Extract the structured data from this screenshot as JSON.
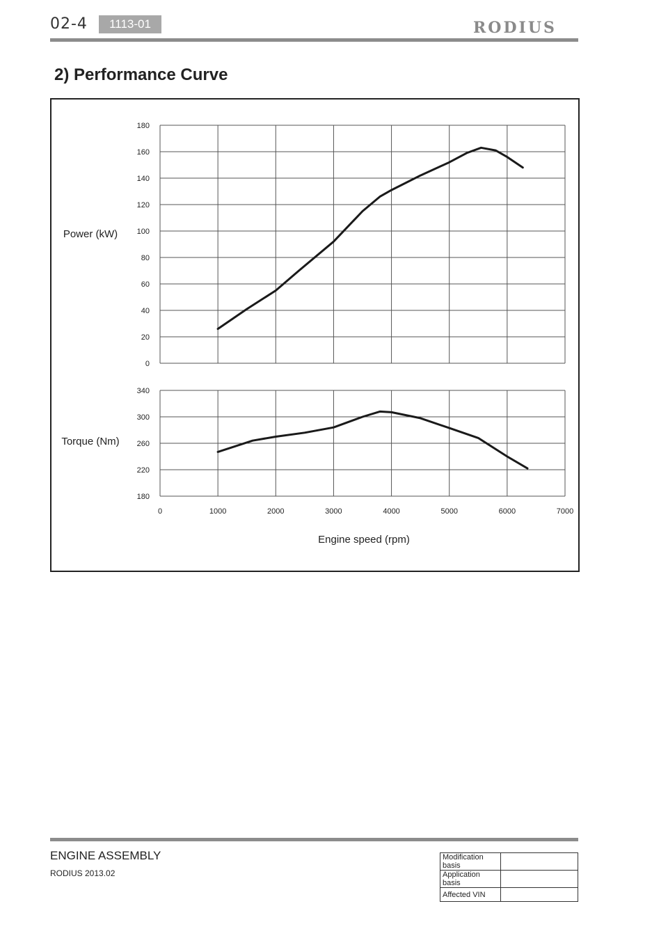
{
  "header": {
    "page_number": "02-4",
    "section_code": "1113-01",
    "brand": "RODIUS"
  },
  "title": "2) Performance Curve",
  "chart_data": [
    {
      "type": "line",
      "ylabel": "Power (kW)",
      "ylim": [
        0,
        180
      ],
      "yticks": [
        0,
        20,
        40,
        60,
        80,
        100,
        120,
        140,
        160,
        180
      ],
      "xlim": [
        0,
        7000
      ],
      "xticks": [
        0,
        1000,
        2000,
        3000,
        4000,
        5000,
        6000,
        7000
      ],
      "grid": true,
      "series": [
        {
          "x": [
            1000,
            1500,
            2000,
            2400,
            3000,
            3500,
            3800,
            4000,
            4500,
            5000,
            5300,
            5550,
            5800,
            6000,
            6270
          ],
          "y": [
            26,
            41,
            55,
            70,
            92,
            115,
            126,
            131,
            142,
            152,
            159,
            163,
            161,
            156,
            148
          ]
        }
      ]
    },
    {
      "type": "line",
      "ylabel": "Torque (Nm)",
      "ylim": [
        180,
        340
      ],
      "yticks": [
        180,
        220,
        260,
        300,
        340
      ],
      "xlim": [
        0,
        7000
      ],
      "xticks": [
        0,
        1000,
        2000,
        3000,
        4000,
        5000,
        6000,
        7000
      ],
      "xlabel": "Engine speed (rpm)",
      "grid": true,
      "series": [
        {
          "x": [
            1000,
            1600,
            2000,
            2500,
            3000,
            3500,
            3800,
            4000,
            4500,
            5000,
            5500,
            6000,
            6350
          ],
          "y": [
            247,
            264,
            270,
            276,
            284,
            300,
            308,
            307,
            298,
            283,
            268,
            240,
            222
          ]
        }
      ]
    }
  ],
  "footer": {
    "title": "ENGINE ASSEMBLY",
    "subtitle": "RODIUS 2013.02",
    "basis_rows": [
      {
        "label": "Modification basis",
        "value": ""
      },
      {
        "label": "Application basis",
        "value": ""
      },
      {
        "label": "Affected VIN",
        "value": ""
      }
    ]
  }
}
